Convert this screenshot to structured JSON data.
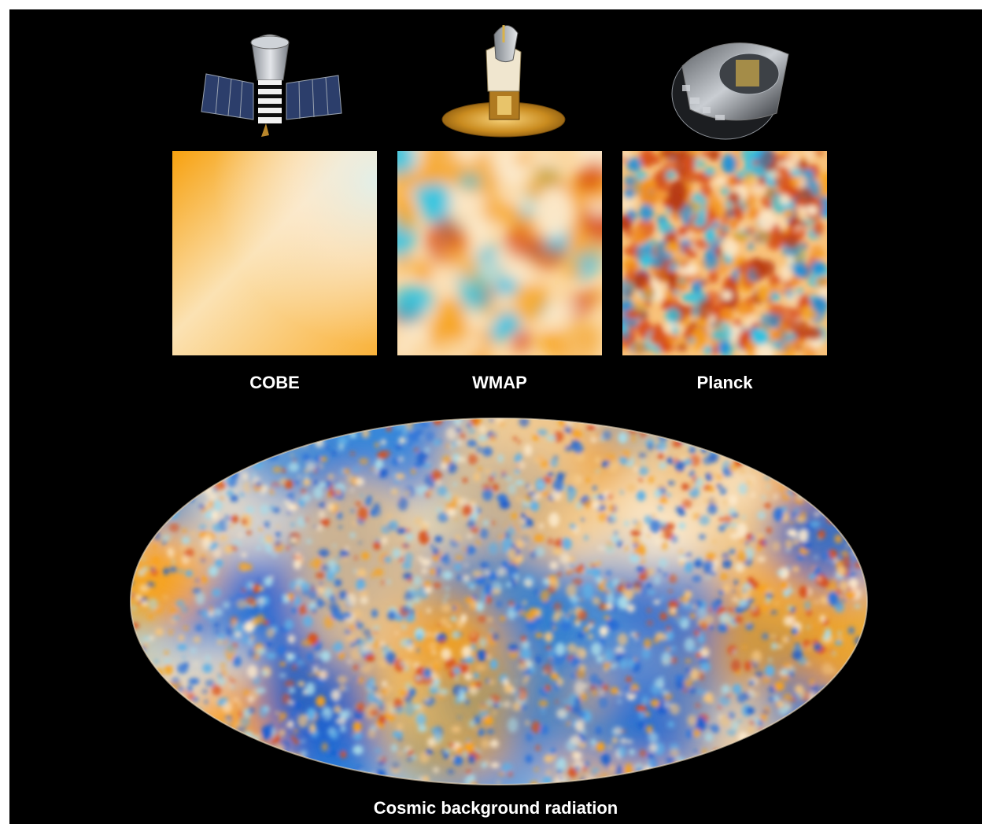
{
  "missions": [
    {
      "key": "cobe",
      "label": "COBE",
      "satellite_icon": "cobe-satellite-icon"
    },
    {
      "key": "wmap",
      "label": "WMAP",
      "satellite_icon": "wmap-satellite-icon"
    },
    {
      "key": "planck",
      "label": "Planck",
      "satellite_icon": "planck-satellite-icon"
    }
  ],
  "caption": "Cosmic background radiation",
  "colors": {
    "background": "#000000",
    "warm": "#f7a21b",
    "hot": "#d8501a",
    "pale": "#fbe9cc",
    "cool": "#29c4e6",
    "cold": "#1a5ecf"
  }
}
